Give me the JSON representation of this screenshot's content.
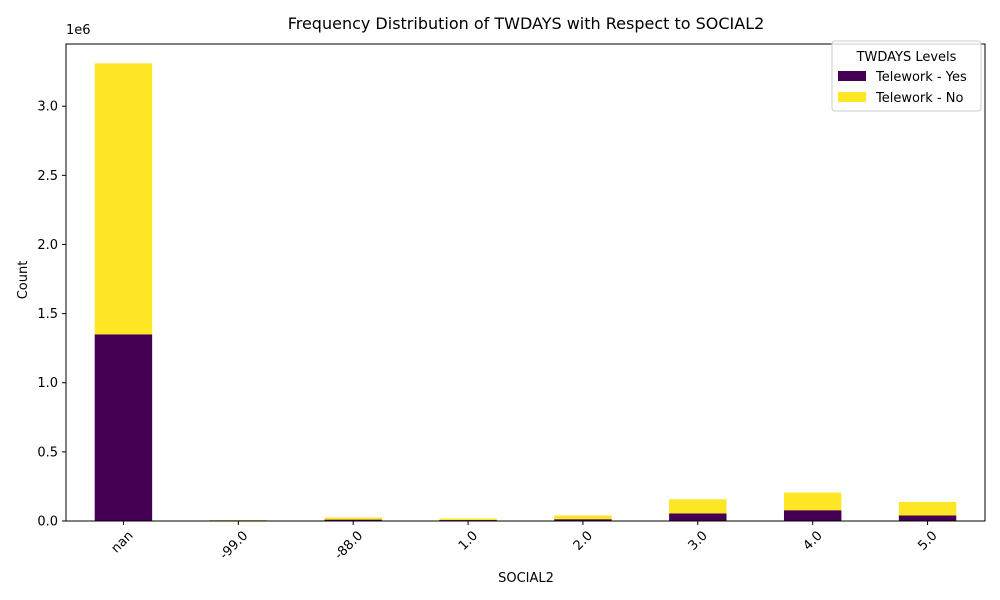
{
  "chart_data": {
    "type": "bar",
    "stacked": true,
    "title": "Frequency Distribution of TWDAYS with Respect to SOCIAL2",
    "xlabel": "SOCIAL2",
    "ylabel": "Count",
    "y_offset_text": "1e6",
    "ylim": [
      0,
      3450000
    ],
    "y_ticks": [
      0,
      500000,
      1000000,
      1500000,
      2000000,
      2500000,
      3000000
    ],
    "y_tick_labels": [
      "0.0",
      "0.5",
      "1.0",
      "1.5",
      "2.0",
      "2.5",
      "3.0"
    ],
    "categories": [
      "nan",
      "-99.0",
      "-88.0",
      "1.0",
      "2.0",
      "3.0",
      "4.0",
      "5.0"
    ],
    "series": [
      {
        "name": "Telework - Yes",
        "color": "#440154",
        "values": [
          1350000,
          5000,
          10000,
          7000,
          13000,
          55000,
          78000,
          40000
        ]
      },
      {
        "name": "Telework - No",
        "color": "#fde725",
        "values": [
          1960000,
          2000,
          15000,
          11000,
          27000,
          102000,
          128000,
          98000
        ]
      }
    ],
    "legend": {
      "title": "TWDAYS Levels",
      "position": "top-right"
    },
    "grid": false
  }
}
